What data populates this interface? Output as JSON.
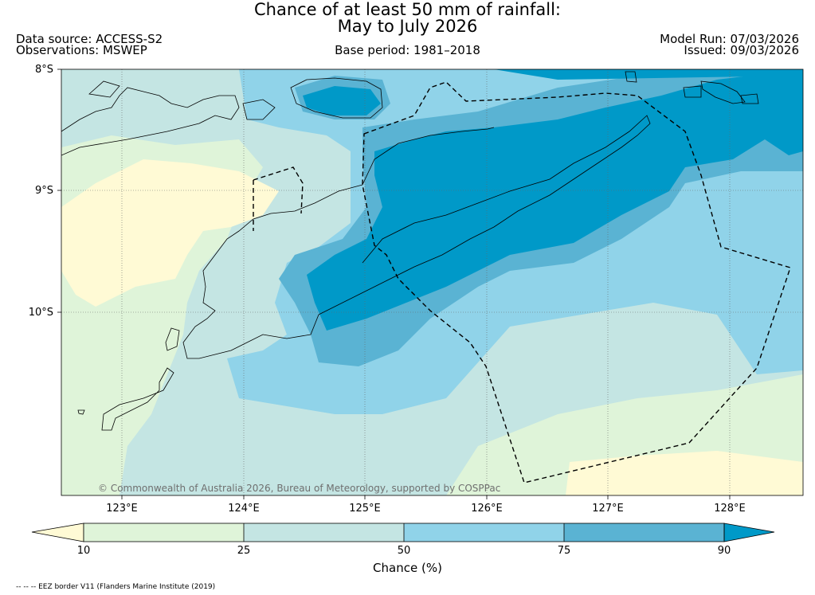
{
  "title": {
    "line1": "Chance of at least 50 mm of rainfall:",
    "line2": "May to July 2026"
  },
  "header": {
    "data_source": "Data source: ACCESS-S2",
    "observations": "Observations: MSWEP",
    "base_period": "Base period: 1981–2018",
    "model_run": "Model Run: 07/03/2026",
    "issued": "Issued: 09/03/2026"
  },
  "map": {
    "lat_labels": [
      "8°S",
      "9°S",
      "10°S"
    ],
    "lon_labels": [
      "123°E",
      "124°E",
      "125°E",
      "126°E",
      "127°E",
      "128°E"
    ],
    "copyright": "© Commonwealth of Australia 2026, Bureau of Meteorology, supported by COSPPac"
  },
  "colorbar": {
    "ticks": [
      "10",
      "25",
      "50",
      "75",
      "90"
    ],
    "label": "Chance (%)",
    "colors": [
      "#fffad5",
      "#dff4d9",
      "#c4e5e3",
      "#90d3e9",
      "#5ab3d3",
      "#0099c8"
    ]
  },
  "footer": {
    "legend": "-- -- -- EEZ border V11 (Flanders Marine Institute (2019)"
  }
}
